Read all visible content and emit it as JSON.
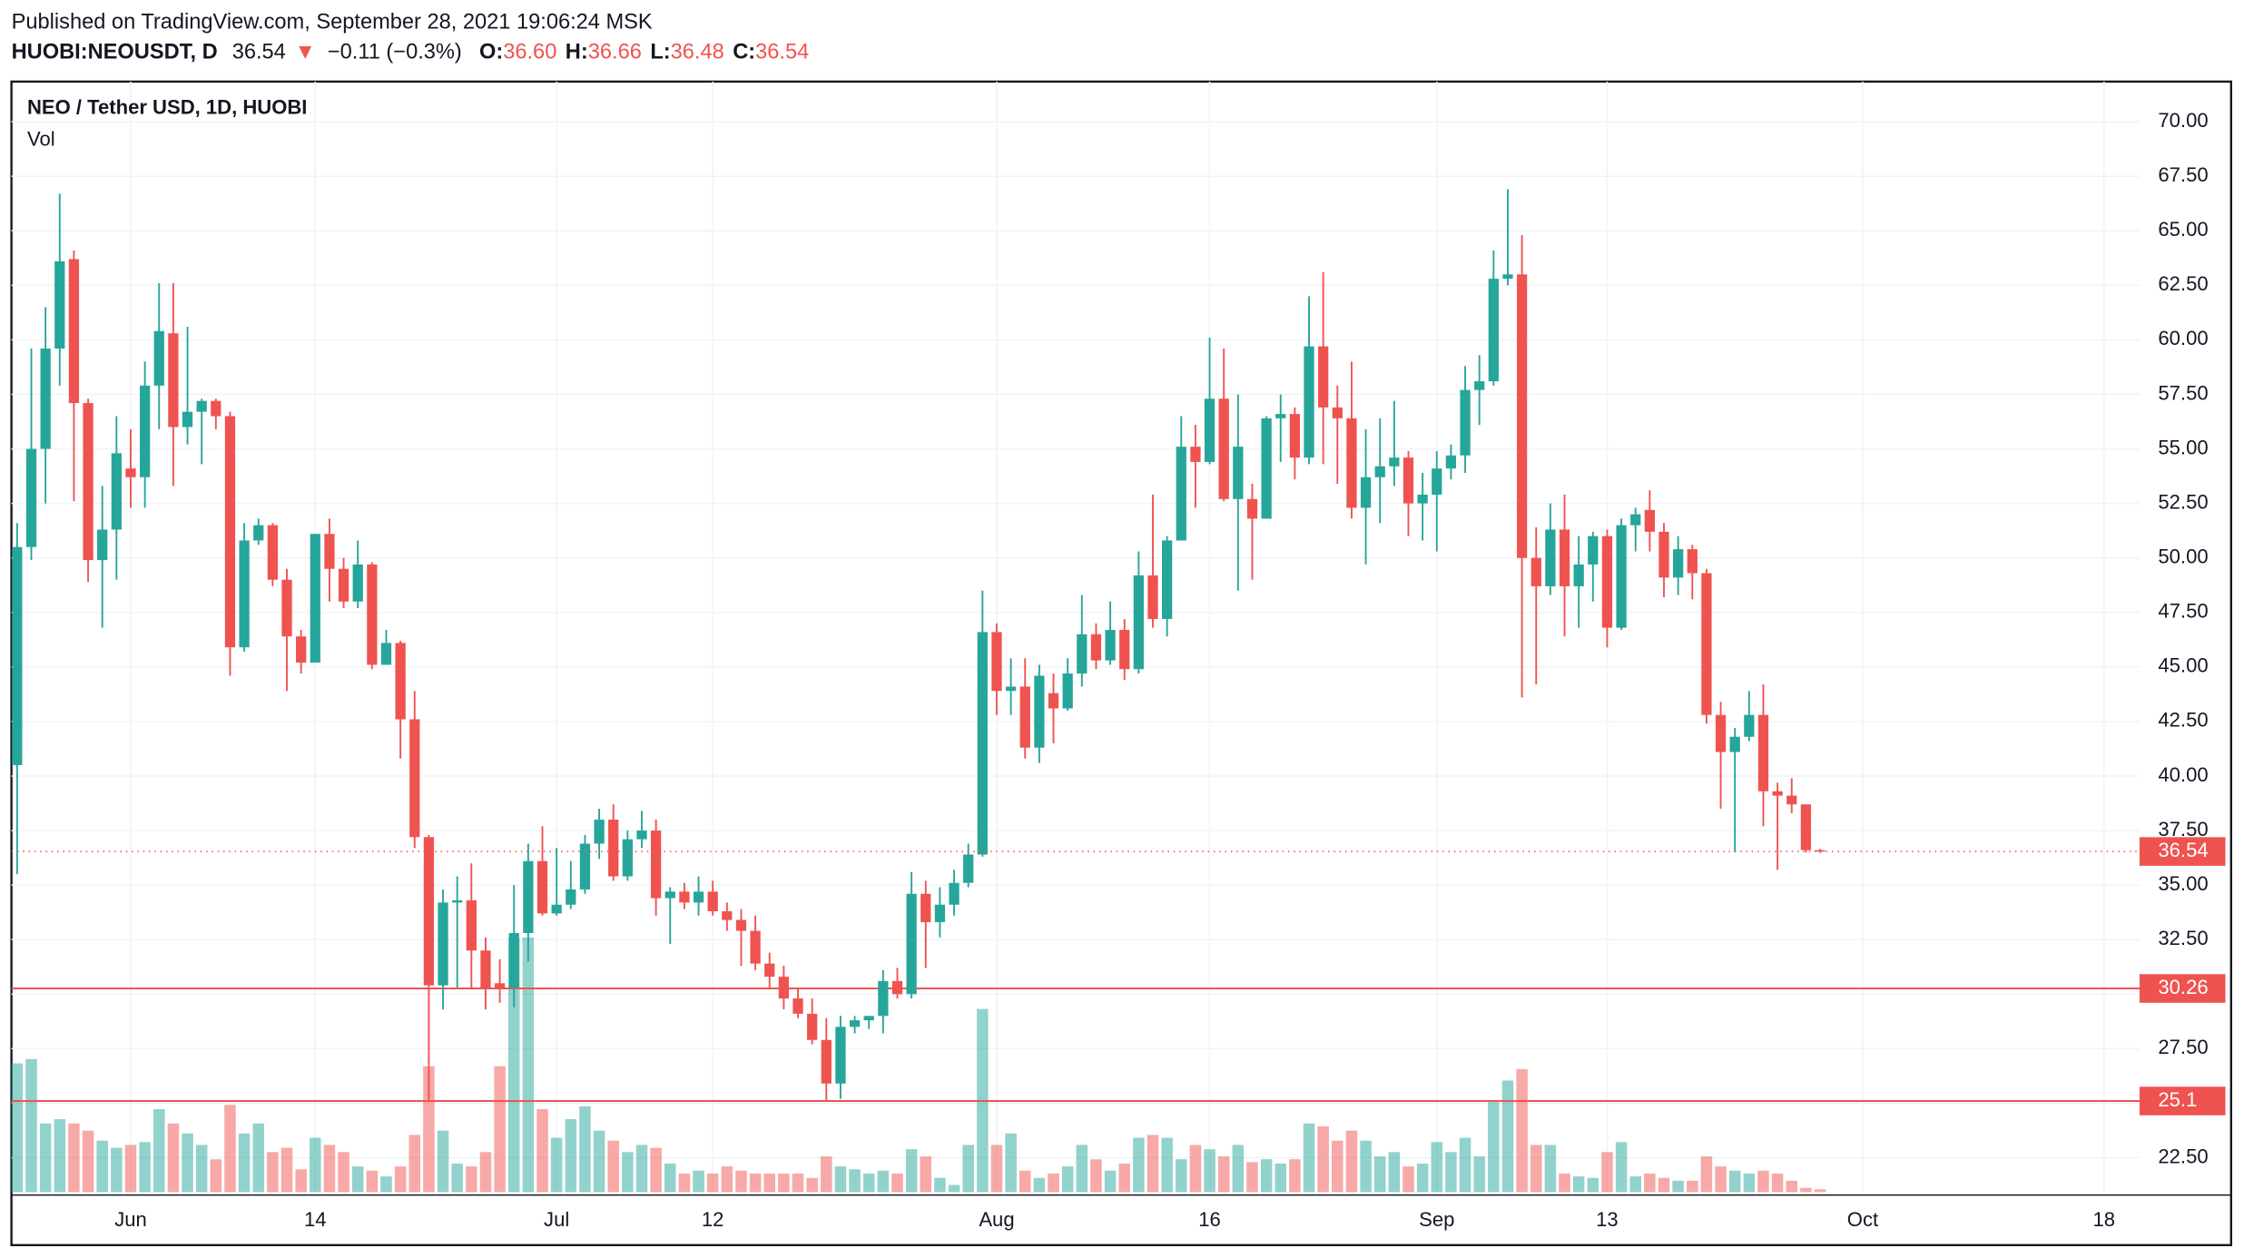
{
  "header": {
    "published": "Published on TradingView.com, September 28, 2021 19:06:24 MSK",
    "symbol": "HUOBI:NEOUSDT, D",
    "last": "36.54",
    "arrow": "▼",
    "change": "−0.11 (−0.3%)",
    "ohlc": [
      {
        "key": "O:",
        "value": "36.60"
      },
      {
        "key": "H:",
        "value": "36.66"
      },
      {
        "key": "L:",
        "value": "36.48"
      },
      {
        "key": "C:",
        "value": "36.54"
      }
    ]
  },
  "chart_data": {
    "type": "candlestick",
    "title": "NEO / Tether USD, 1D, HUOBI",
    "volume_label": "Vol",
    "up_color": "#26a69a",
    "down_color": "#ef5350",
    "grid": true,
    "xlim": [
      -0.4,
      149.5
    ],
    "ylim": [
      20.92,
      71.84
    ],
    "xticks": [
      {
        "value": 8,
        "label": "Jun"
      },
      {
        "value": 21,
        "label": "14"
      },
      {
        "value": 38,
        "label": "Jul"
      },
      {
        "value": 49,
        "label": "12"
      },
      {
        "value": 69,
        "label": "Aug"
      },
      {
        "value": 84,
        "label": "16"
      },
      {
        "value": 100,
        "label": "Sep"
      },
      {
        "value": 112,
        "label": "13"
      },
      {
        "value": 130,
        "label": "Oct"
      },
      {
        "value": 147,
        "label": "18"
      }
    ],
    "yticks": [
      {
        "value": 22.5,
        "label": "22.50"
      },
      {
        "value": 25,
        "label": "25.00"
      },
      {
        "value": 27.5,
        "label": "27.50"
      },
      {
        "value": 30,
        "label": "30.00"
      },
      {
        "value": 32.5,
        "label": "32.50"
      },
      {
        "value": 35,
        "label": "35.00"
      },
      {
        "value": 37.5,
        "label": "37.50"
      },
      {
        "value": 40,
        "label": "40.00"
      },
      {
        "value": 42.5,
        "label": "42.50"
      },
      {
        "value": 45,
        "label": "45.00"
      },
      {
        "value": 47.5,
        "label": "47.50"
      },
      {
        "value": 50,
        "label": "50.00"
      },
      {
        "value": 52.5,
        "label": "52.50"
      },
      {
        "value": 55,
        "label": "55.00"
      },
      {
        "value": 57.5,
        "label": "57.50"
      },
      {
        "value": 60,
        "label": "60.00"
      },
      {
        "value": 62.5,
        "label": "62.50"
      },
      {
        "value": 65,
        "label": "65.00"
      },
      {
        "value": 67.5,
        "label": "67.50"
      },
      {
        "value": 70,
        "label": "70.00"
      }
    ],
    "levels": [
      30.26,
      25.1
    ],
    "open": [
      40.5,
      50.5,
      55.0,
      59.6,
      63.7,
      57.1,
      49.9,
      51.3,
      54.1,
      53.7,
      57.9,
      60.3,
      56.0,
      56.7,
      57.2,
      56.5,
      45.9,
      50.8,
      51.5,
      49.0,
      46.4,
      45.2,
      51.1,
      49.5,
      48.0,
      49.7,
      45.1,
      46.1,
      42.6,
      37.2,
      30.4,
      34.2,
      34.3,
      32.0,
      30.5,
      30.3,
      32.8,
      36.1,
      33.7,
      34.1,
      34.8,
      36.9,
      38.0,
      35.4,
      37.1,
      37.5,
      34.4,
      34.7,
      34.2,
      34.7,
      33.8,
      33.4,
      32.9,
      31.4,
      30.8,
      29.8,
      29.1,
      27.9,
      25.9,
      28.5,
      28.8,
      29.0,
      30.6,
      30.0,
      34.6,
      33.3,
      34.1,
      35.1,
      36.4,
      46.6,
      43.9,
      44.1,
      41.3,
      43.8,
      43.1,
      44.7,
      46.5,
      45.3,
      46.7,
      44.9,
      49.2,
      47.2,
      50.8,
      55.1,
      54.4,
      57.3,
      52.7,
      52.7,
      51.8,
      56.4,
      56.6,
      54.6,
      59.7,
      56.9,
      56.4,
      52.3,
      53.7,
      54.2,
      54.6,
      52.5,
      52.9,
      54.1,
      54.7,
      57.7,
      58.1,
      62.8,
      63.0,
      50.0,
      48.7,
      51.3,
      48.7,
      49.7,
      51.0,
      46.8,
      51.5,
      52.2,
      51.2,
      49.1,
      50.4,
      49.3,
      42.8,
      41.1,
      41.8,
      42.8,
      39.3,
      39.1,
      38.7,
      36.6
    ],
    "high": [
      51.6,
      59.6,
      61.5,
      66.7,
      64.1,
      57.3,
      53.3,
      56.5,
      55.9,
      59.0,
      62.6,
      62.6,
      60.6,
      57.3,
      57.3,
      56.7,
      51.6,
      51.8,
      51.6,
      49.5,
      46.7,
      51.1,
      51.8,
      50.0,
      50.8,
      49.8,
      46.7,
      46.2,
      43.9,
      37.3,
      34.8,
      35.4,
      36.0,
      32.6,
      31.6,
      35.0,
      36.9,
      37.7,
      36.7,
      36.1,
      37.3,
      38.5,
      38.7,
      37.5,
      38.4,
      38.0,
      34.9,
      35.1,
      35.4,
      35.2,
      34.2,
      33.9,
      33.6,
      31.9,
      31.3,
      30.3,
      29.8,
      28.9,
      29.0,
      29.0,
      29.0,
      31.1,
      31.2,
      35.6,
      35.2,
      34.9,
      35.7,
      36.9,
      48.5,
      47.0,
      45.4,
      45.4,
      45.1,
      44.7,
      45.4,
      48.3,
      47.0,
      48.0,
      47.2,
      50.3,
      52.9,
      51.0,
      56.5,
      56.1,
      60.1,
      59.6,
      57.5,
      53.4,
      56.5,
      57.5,
      56.9,
      62.0,
      63.1,
      57.9,
      59.0,
      55.9,
      56.4,
      57.2,
      54.9,
      53.9,
      54.9,
      55.2,
      58.8,
      59.3,
      64.1,
      66.9,
      64.8,
      51.4,
      52.5,
      52.9,
      51.0,
      51.2,
      51.3,
      51.8,
      52.3,
      53.1,
      51.6,
      51.0,
      50.6,
      49.5,
      43.4,
      42.2,
      43.9,
      44.2,
      39.7,
      39.9,
      38.7,
      36.66
    ],
    "low": [
      35.5,
      49.9,
      52.5,
      57.9,
      52.6,
      48.9,
      46.8,
      49.0,
      52.3,
      52.3,
      55.9,
      53.3,
      55.2,
      54.3,
      55.9,
      44.6,
      45.7,
      50.6,
      48.7,
      43.9,
      44.7,
      45.2,
      48.0,
      47.7,
      47.7,
      44.9,
      45.1,
      40.8,
      36.7,
      25.1,
      29.3,
      30.3,
      30.3,
      29.3,
      29.6,
      29.4,
      31.5,
      33.6,
      33.6,
      33.9,
      34.6,
      36.2,
      35.2,
      35.2,
      36.7,
      33.6,
      32.3,
      33.9,
      33.6,
      33.6,
      32.9,
      31.3,
      31.1,
      30.3,
      29.3,
      28.9,
      27.7,
      25.1,
      25.2,
      28.2,
      28.4,
      28.2,
      29.8,
      29.8,
      31.2,
      32.6,
      33.6,
      34.9,
      36.3,
      42.8,
      42.8,
      40.8,
      40.6,
      41.5,
      43.0,
      44.1,
      44.9,
      45.1,
      44.4,
      44.7,
      46.8,
      46.4,
      50.8,
      52.3,
      54.3,
      52.6,
      48.5,
      49.0,
      51.8,
      54.4,
      53.6,
      54.3,
      54.3,
      53.4,
      51.8,
      49.7,
      51.6,
      53.3,
      51.0,
      50.8,
      50.3,
      53.6,
      53.9,
      56.1,
      57.9,
      62.5,
      43.6,
      44.2,
      48.3,
      46.4,
      46.8,
      48.0,
      45.9,
      46.7,
      50.3,
      50.3,
      48.2,
      48.3,
      48.1,
      42.4,
      38.5,
      36.5,
      41.6,
      37.7,
      35.7,
      38.3,
      36.5,
      36.48
    ],
    "close": [
      50.5,
      55.0,
      59.6,
      63.6,
      57.1,
      49.9,
      51.3,
      54.8,
      53.7,
      57.9,
      60.4,
      56.0,
      56.7,
      57.2,
      56.5,
      45.9,
      50.8,
      51.5,
      49.0,
      46.4,
      45.2,
      51.1,
      49.5,
      48.0,
      49.7,
      45.1,
      46.1,
      42.6,
      37.2,
      30.4,
      34.2,
      34.3,
      32.0,
      30.3,
      30.3,
      32.8,
      36.1,
      33.7,
      34.1,
      34.8,
      36.9,
      38.0,
      35.4,
      37.1,
      37.5,
      34.4,
      34.7,
      34.2,
      34.7,
      33.8,
      33.4,
      32.9,
      31.4,
      30.8,
      29.8,
      29.1,
      27.9,
      25.9,
      28.5,
      28.8,
      29.0,
      30.6,
      30.0,
      34.6,
      33.3,
      34.1,
      35.1,
      36.4,
      46.6,
      43.9,
      44.1,
      41.3,
      44.6,
      43.1,
      44.7,
      46.5,
      45.3,
      46.7,
      44.9,
      49.2,
      47.2,
      50.8,
      55.1,
      54.4,
      57.3,
      52.7,
      55.1,
      51.8,
      56.4,
      56.6,
      54.6,
      59.7,
      56.9,
      56.4,
      52.3,
      53.7,
      54.2,
      54.6,
      52.5,
      52.9,
      54.1,
      54.7,
      57.7,
      58.1,
      62.8,
      63.0,
      50.0,
      48.7,
      51.3,
      48.7,
      49.7,
      51.0,
      46.8,
      51.5,
      52.0,
      51.2,
      49.1,
      50.4,
      49.3,
      42.8,
      41.1,
      41.8,
      42.8,
      39.3,
      39.1,
      38.7,
      36.6,
      36.54
    ],
    "volume": [
      90,
      93,
      48,
      51,
      48,
      43,
      36,
      31,
      33,
      35,
      58,
      48,
      41,
      33,
      23,
      61,
      41,
      48,
      28,
      31,
      16,
      38,
      33,
      28,
      18,
      15,
      11,
      18,
      40,
      88,
      43,
      20,
      18,
      28,
      88,
      178,
      178,
      58,
      38,
      51,
      60,
      43,
      36,
      28,
      33,
      31,
      20,
      13,
      15,
      13,
      18,
      15,
      13,
      13,
      13,
      13,
      10,
      25,
      18,
      16,
      13,
      15,
      13,
      30,
      25,
      10,
      5,
      33,
      128,
      33,
      41,
      15,
      10,
      13,
      18,
      33,
      23,
      15,
      20,
      38,
      40,
      38,
      23,
      33,
      30,
      25,
      33,
      21,
      23,
      20,
      23,
      48,
      46,
      36,
      43,
      36,
      25,
      28,
      18,
      20,
      35,
      28,
      38,
      25,
      63,
      78,
      86,
      33,
      33,
      13,
      11,
      10,
      28,
      35,
      11,
      13,
      10,
      8,
      8,
      25,
      18,
      15,
      13,
      15,
      13,
      8,
      3,
      2
    ]
  }
}
